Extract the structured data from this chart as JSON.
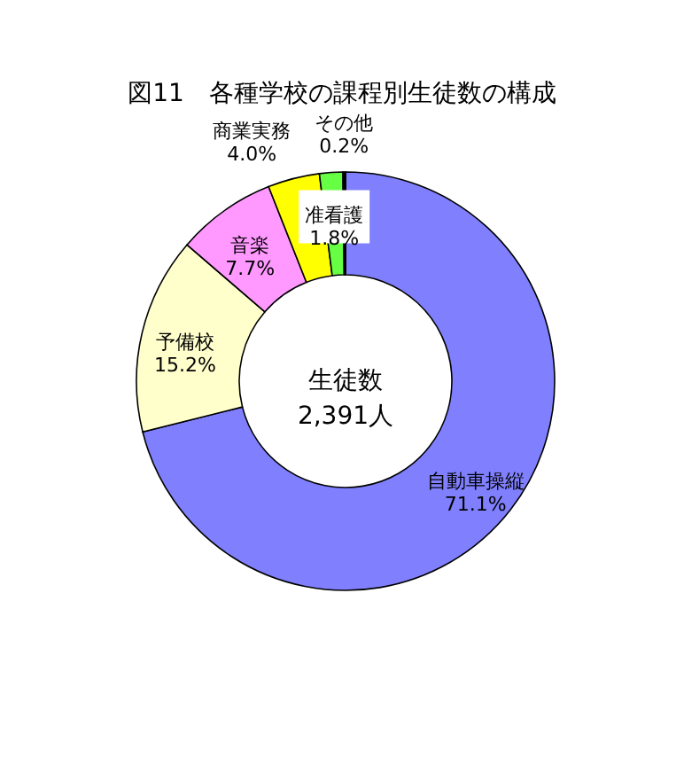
{
  "chart_data": {
    "type": "donut",
    "title": "図11　各種学校の課程別生徒数の構成",
    "categories": [
      "自動車操縦",
      "予備校",
      "音楽",
      "商業実務",
      "准看護",
      "その他"
    ],
    "values": [
      71.1,
      15.2,
      7.7,
      4.0,
      1.8,
      0.2
    ],
    "value_labels": [
      "71.1%",
      "15.2%",
      "7.7%",
      "4.0%",
      "1.8%",
      "0.2%"
    ],
    "colors": [
      "#8080ff",
      "#ffffcc",
      "#ff99ff",
      "#ffff00",
      "#66ff44",
      "#000000"
    ],
    "annotations": [
      "生徒数",
      "2,391人"
    ],
    "legend": false
  }
}
